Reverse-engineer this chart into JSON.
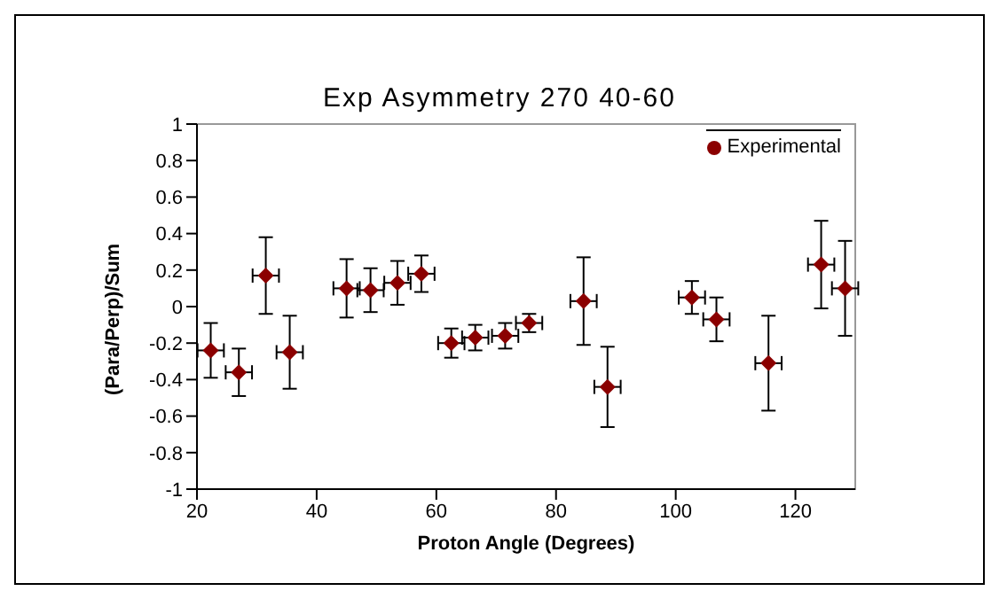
{
  "chart_data": {
    "type": "scatter",
    "title": "Exp Asymmetry 270 40-60",
    "xlabel": "Proton Angle (Degrees)",
    "ylabel": "(Para/Perp)/Sum",
    "x": [
      22.3,
      27,
      31.5,
      35.5,
      45,
      49,
      53.5,
      57.5,
      62.5,
      66.5,
      71.5,
      75.5,
      84.6,
      88.6,
      102.7,
      106.8,
      115.5,
      124.3,
      128.3
    ],
    "series": [
      {
        "name": "Experimental",
        "color": "#8b0000",
        "values": [
          -0.24,
          -0.36,
          0.17,
          -0.25,
          0.1,
          0.09,
          0.13,
          0.18,
          -0.2,
          -0.17,
          -0.16,
          -0.09,
          0.03,
          -0.44,
          0.05,
          -0.07,
          -0.31,
          0.23,
          0.1
        ],
        "errors": [
          0.15,
          0.13,
          0.21,
          0.2,
          0.16,
          0.12,
          0.12,
          0.1,
          0.08,
          0.07,
          0.07,
          0.05,
          0.24,
          0.22,
          0.09,
          0.12,
          0.26,
          0.24,
          0.26
        ],
        "xerrors": [
          2.2,
          2.2,
          2.2,
          2.2,
          2.2,
          2.2,
          2.2,
          2.2,
          2.2,
          2.2,
          2.2,
          2.2,
          2.2,
          2.2,
          2.2,
          2.2,
          2.2,
          2.2,
          2.2
        ]
      }
    ],
    "xlim": [
      20,
      130
    ],
    "xticks": [
      20,
      40,
      60,
      80,
      100,
      120
    ],
    "ylim": [
      -1,
      1
    ],
    "yticks": [
      -1,
      -0.8,
      -0.6,
      -0.4,
      -0.2,
      0,
      0.2,
      0.4,
      0.6,
      0.8,
      1
    ],
    "marker": "diamond",
    "legend": "top right",
    "grid": false
  }
}
